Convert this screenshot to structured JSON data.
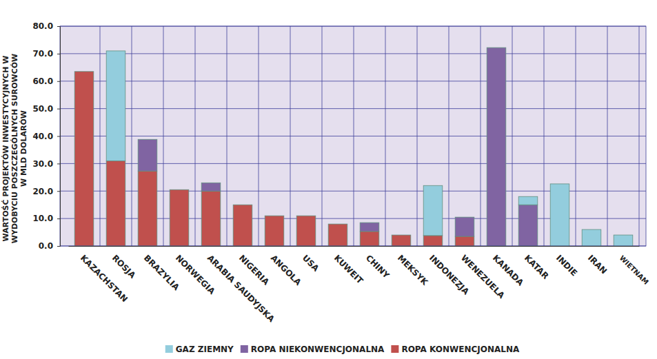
{
  "chart_data": {
    "type": "bar",
    "stacked": true,
    "grid": true,
    "legend": "bottom",
    "ylabel": [
      "WARTOŚĆ PROJEKTÓW INWESTYCYJNYCH W",
      "WYDOBYCIU POSZCZEGÓLNYCH SUROWCÓW",
      "W MLD DOLARÓW"
    ],
    "categories": [
      "KAZACHSTAN",
      "ROSJA",
      "BRAZYLIA",
      "NORWEGIA",
      "ARABIA SAUDYJSKA",
      "NIGERIA",
      "ANGOLA",
      "USA",
      "KUWEIT",
      "CHINY",
      "MEKSYK",
      "INDONEZJA",
      "WENEZUELA",
      "KANADA",
      "KATAR",
      "INDIE",
      "IRAN",
      "WIETNAM"
    ],
    "series": [
      {
        "name": "ROPA KONWENCJONALNA",
        "color": "#c0504d",
        "values": [
          63.5,
          31,
          27.3,
          20.5,
          20,
          15,
          11,
          11,
          8,
          5.3,
          4,
          3.8,
          3.5,
          0,
          0,
          0,
          0,
          0
        ]
      },
      {
        "name": "ROPA NIEKONWENCJONALNA",
        "color": "#8064a2",
        "values": [
          0,
          0,
          11.5,
          0,
          3,
          0,
          0,
          0,
          0,
          3.2,
          0,
          0,
          7,
          72.2,
          15,
          0,
          0,
          0
        ]
      },
      {
        "name": "GAZ ZIEMNY",
        "color": "#93cddd",
        "values": [
          0,
          40,
          0,
          0,
          0,
          0,
          0,
          0,
          0,
          0,
          0,
          18.2,
          0,
          0,
          3,
          22.6,
          6,
          4
        ]
      }
    ],
    "ylim": [
      0,
      80
    ],
    "yticks": [
      {
        "value": 0,
        "label": "0.0"
      },
      {
        "value": 10,
        "label": "10.0"
      },
      {
        "value": 20,
        "label": "20.0"
      },
      {
        "value": 30,
        "label": "30.0"
      },
      {
        "value": 40,
        "label": "40.0"
      },
      {
        "value": 50,
        "label": "50.0"
      },
      {
        "value": 60,
        "label": "60.0"
      },
      {
        "value": 70,
        "label": "70.0"
      },
      {
        "value": 80,
        "label": "80.0"
      }
    ]
  }
}
